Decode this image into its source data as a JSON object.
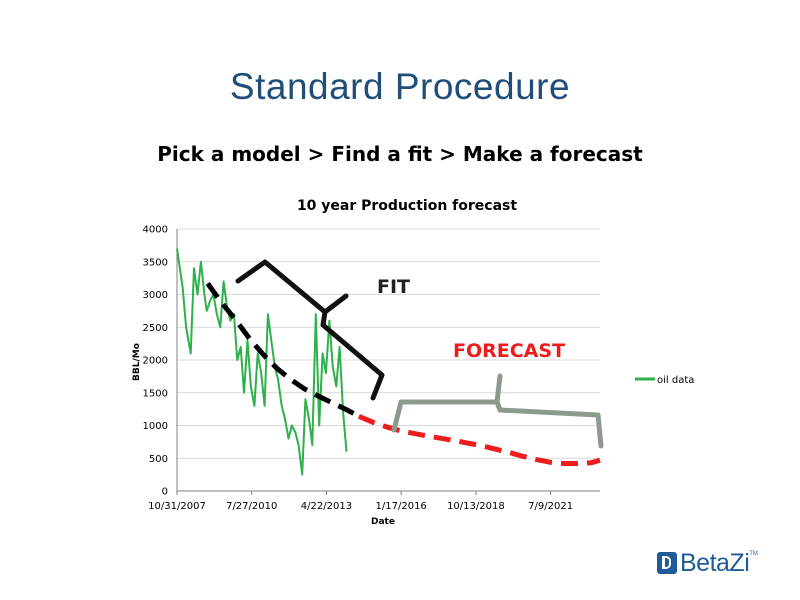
{
  "slide": {
    "title": "Standard Procedure",
    "subtitle": "Pick a model > Find a fit > Make a forecast"
  },
  "logo": {
    "text": "BetaZi",
    "tm": "TM"
  },
  "chart_data": {
    "type": "line",
    "title": "10 year Production forecast",
    "xlabel": "Date",
    "ylabel": "BBL/Mo",
    "ylim": [
      0,
      4000
    ],
    "yticks": [
      0,
      500,
      1000,
      1500,
      2000,
      2500,
      3000,
      3500,
      4000
    ],
    "xlim": [
      "10/31/2007",
      "5/1/2023"
    ],
    "xticks": [
      "10/31/2007",
      "7/27/2010",
      "4/22/2013",
      "1/17/2016",
      "10/13/2018",
      "7/9/2021"
    ],
    "grid": true,
    "legend": {
      "position": "right",
      "entries": [
        "oil data"
      ]
    },
    "colors": {
      "oil": "#2eb04a",
      "fit": "#000000",
      "forecast": "#ee1c1c",
      "bracket_fit": "#111111",
      "bracket_forecast": "#8c9a8c"
    },
    "series": [
      {
        "name": "oil data",
        "style": "solid",
        "x": [
          "10/31/2007",
          "1/15/2008",
          "3/1/2008",
          "5/1/2008",
          "6/15/2008",
          "8/1/2008",
          "9/15/2008",
          "11/1/2008",
          "12/1/2008",
          "1/15/2009",
          "3/1/2009",
          "4/15/2009",
          "6/1/2009",
          "7/15/2009",
          "9/1/2009",
          "10/15/2009",
          "12/1/2009",
          "1/15/2010",
          "3/1/2010",
          "4/15/2010",
          "6/1/2010",
          "7/15/2010",
          "9/1/2010",
          "10/15/2010",
          "12/1/2010",
          "1/15/2011",
          "3/1/2011",
          "4/15/2011",
          "6/1/2011",
          "7/15/2011",
          "9/1/2011",
          "10/15/2011",
          "12/1/2011",
          "1/15/2012",
          "3/1/2012",
          "4/15/2012",
          "6/1/2012",
          "7/15/2012",
          "9/1/2012",
          "10/15/2012",
          "12/1/2012",
          "1/15/2013",
          "3/1/2013",
          "4/15/2013",
          "6/1/2013",
          "7/15/2013",
          "9/1/2013",
          "10/15/2013",
          "12/1/2013",
          "1/15/2014"
        ],
        "values": [
          3700,
          3100,
          2500,
          2100,
          3400,
          3000,
          3500,
          3000,
          2750,
          2900,
          3000,
          2700,
          2500,
          3200,
          2800,
          2600,
          2700,
          2000,
          2200,
          1500,
          2300,
          1600,
          1300,
          2100,
          1800,
          1300,
          2700,
          2300,
          1900,
          1700,
          1300,
          1100,
          800,
          1000,
          900,
          700,
          250,
          1400,
          1100,
          700,
          2700,
          1000,
          2100,
          1800,
          2600,
          1900,
          1600,
          2200,
          1200,
          600
        ]
      },
      {
        "name": "fit",
        "style": "dashed",
        "x": [
          "12/15/2008",
          "6/1/2009",
          "1/1/2010",
          "7/1/2010",
          "1/1/2011",
          "7/1/2011",
          "1/1/2012",
          "7/1/2012",
          "1/1/2013",
          "7/1/2013",
          "1/1/2014",
          "7/1/2014"
        ],
        "values": [
          3170,
          2900,
          2600,
          2320,
          2080,
          1870,
          1700,
          1560,
          1450,
          1350,
          1250,
          1140
        ]
      },
      {
        "name": "forecast",
        "style": "dashed",
        "x": [
          "7/1/2014",
          "1/1/2015",
          "7/1/2015",
          "1/1/2016",
          "1/1/2017",
          "1/1/2018",
          "1/1/2019",
          "1/1/2020",
          "7/1/2020",
          "1/1/2021",
          "7/1/2021",
          "1/1/2022",
          "7/1/2022",
          "1/1/2023",
          "5/1/2023"
        ],
        "values": [
          1140,
          1050,
          980,
          920,
          840,
          770,
          690,
          590,
          530,
          480,
          440,
          420,
          420,
          430,
          470
        ]
      }
    ],
    "annotations": [
      {
        "text": "FIT",
        "color": "#222222"
      },
      {
        "text": "FORECAST",
        "color": "#ee1c1c"
      }
    ]
  }
}
